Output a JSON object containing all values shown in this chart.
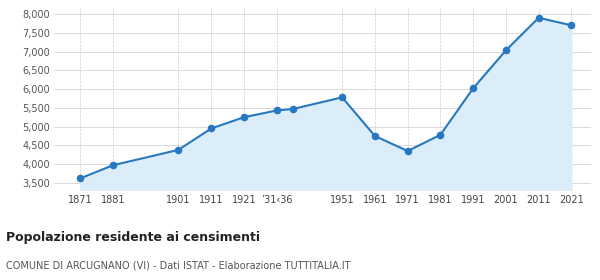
{
  "years": [
    1871,
    1881,
    1901,
    1911,
    1921,
    1931,
    1936,
    1951,
    1961,
    1971,
    1981,
    1991,
    2001,
    2011,
    2021
  ],
  "population": [
    3620,
    3970,
    4380,
    4950,
    5250,
    5430,
    5470,
    5780,
    4750,
    4350,
    4780,
    6020,
    7030,
    7900,
    7700
  ],
  "x_tick_positions": [
    1871,
    1881,
    1901,
    1911,
    1921,
    1931,
    1951,
    1961,
    1971,
    1981,
    1991,
    2001,
    2011,
    2021
  ],
  "x_tick_labels": [
    "1871",
    "1881",
    "1901",
    "1911",
    "1921",
    "’31‹36",
    "1951",
    "1961",
    "1971",
    "1981",
    "1991",
    "2001",
    "2011",
    "2021"
  ],
  "xlim": [
    1863,
    2027
  ],
  "ylim": [
    3300,
    8150
  ],
  "yticks": [
    3500,
    4000,
    4500,
    5000,
    5500,
    6000,
    6500,
    7000,
    7500,
    8000
  ],
  "ytick_labels": [
    "3,500",
    "4,000",
    "4,500",
    "5,000",
    "5,500",
    "6,000",
    "6,500",
    "7,000",
    "7,500",
    "8,000"
  ],
  "line_color": "#2878c0",
  "fill_color": "#daedf8",
  "marker_color": "#2878c0",
  "title": "Popolazione residente ai censimenti",
  "subtitle": "COMUNE DI ARCUGNANO (VI) - Dati ISTAT - Elaborazione TUTTITALIA.IT",
  "background_color": "#ffffff",
  "grid_color": "#cccccc"
}
